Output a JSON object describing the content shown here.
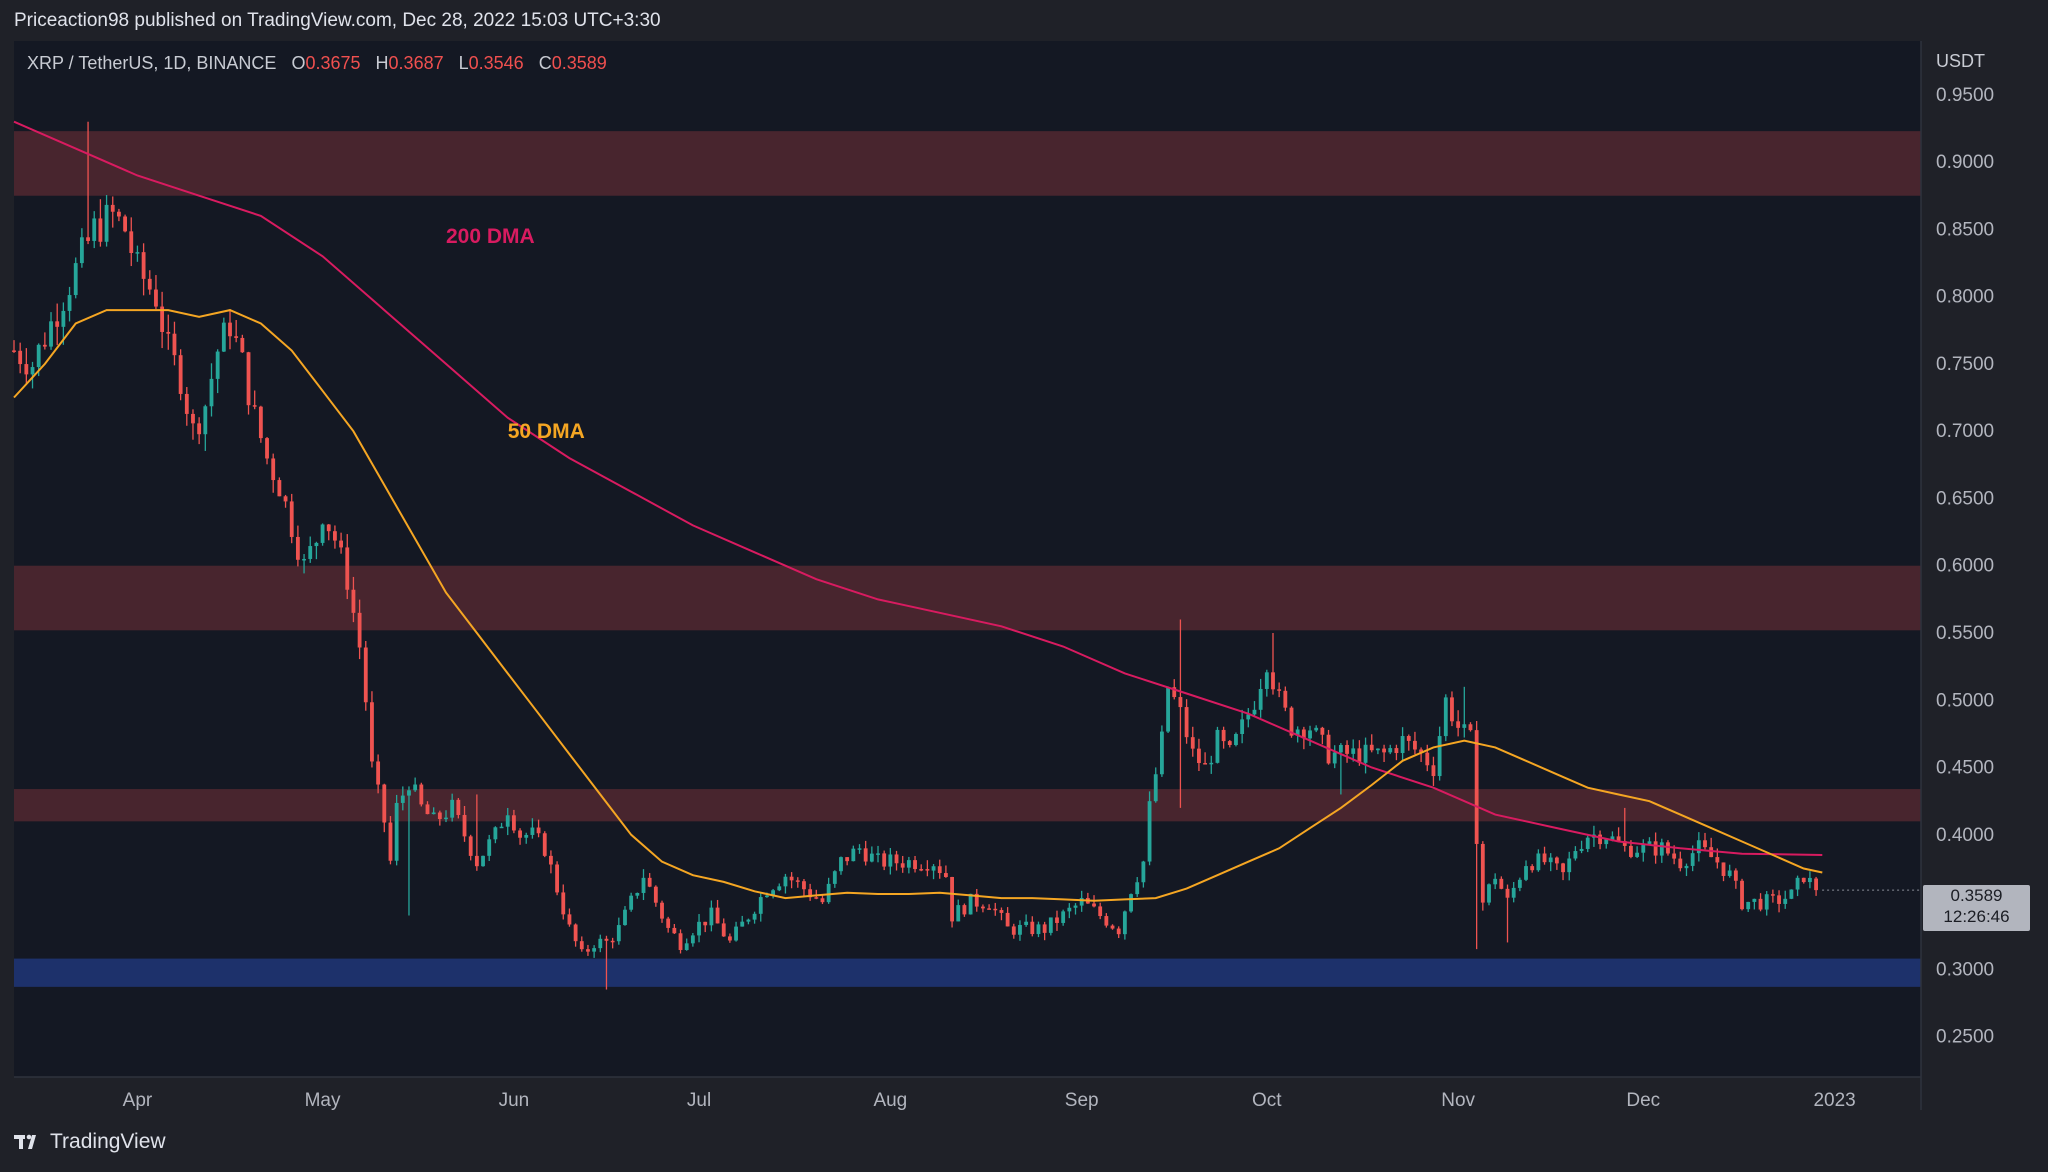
{
  "header": {
    "published": "Priceaction98 published on TradingView.com, Dec 28, 2022 15:03 UTC+3:30"
  },
  "legend": {
    "symbol": "XRP / TetherUS, 1D, BINANCE",
    "open_label": "O",
    "open": "0.3675",
    "high_label": "H",
    "high": "0.3687",
    "low_label": "L",
    "low": "0.3546",
    "close_label": "C",
    "close": "0.3589"
  },
  "price_tag": {
    "price": "0.3589",
    "countdown": "12:26:46"
  },
  "footer": {
    "brand": "TradingView"
  },
  "colors": {
    "up": "#26a69a",
    "down": "#ef5350",
    "ma200": "#d81b60",
    "ma50": "#f5a623",
    "zone": "#5a2a33",
    "support": "#1e3370",
    "bg": "#141823"
  },
  "chart_data": {
    "type": "candlestick",
    "currency_label": "USDT",
    "ylim": [
      0.22,
      0.99
    ],
    "y_ticks": [
      "0.9500",
      "0.9000",
      "0.8500",
      "0.8000",
      "0.7500",
      "0.7000",
      "0.6500",
      "0.6000",
      "0.5500",
      "0.5000",
      "0.4500",
      "0.4000",
      "0.3000",
      "0.2500"
    ],
    "x_ticks": [
      {
        "label": "Apr",
        "day": 10
      },
      {
        "label": "May",
        "day": 40
      },
      {
        "label": "Jun",
        "day": 71
      },
      {
        "label": "Jul",
        "day": 101
      },
      {
        "label": "Aug",
        "day": 132
      },
      {
        "label": "Sep",
        "day": 163
      },
      {
        "label": "Oct",
        "day": 193
      },
      {
        "label": "Nov",
        "day": 224
      },
      {
        "label": "Dec",
        "day": 254
      },
      {
        "label": "2023",
        "day": 285
      }
    ],
    "x_range_days": [
      -10,
      299
    ],
    "zones": [
      {
        "low": 0.875,
        "high": 0.923,
        "type": "resistance"
      },
      {
        "low": 0.552,
        "high": 0.6,
        "type": "resistance"
      },
      {
        "low": 0.41,
        "high": 0.434,
        "type": "resistance"
      },
      {
        "low": 0.287,
        "high": 0.308,
        "type": "support"
      }
    ],
    "anchors": [
      [
        -10,
        0.76
      ],
      [
        -7,
        0.75
      ],
      [
        -3,
        0.79
      ],
      [
        0,
        0.82
      ],
      [
        3,
        0.85
      ],
      [
        6,
        0.86
      ],
      [
        8,
        0.85
      ],
      [
        10,
        0.82
      ],
      [
        13,
        0.8
      ],
      [
        15,
        0.76
      ],
      [
        17,
        0.74
      ],
      [
        19,
        0.7
      ],
      [
        21,
        0.72
      ],
      [
        23,
        0.76
      ],
      [
        25,
        0.78
      ],
      [
        27,
        0.75
      ],
      [
        29,
        0.71
      ],
      [
        31,
        0.68
      ],
      [
        33,
        0.66
      ],
      [
        35,
        0.63
      ],
      [
        37,
        0.6
      ],
      [
        39,
        0.62
      ],
      [
        40,
        0.64
      ],
      [
        42,
        0.62
      ],
      [
        44,
        0.59
      ],
      [
        46,
        0.54
      ],
      [
        47,
        0.5
      ],
      [
        48,
        0.45
      ],
      [
        50,
        0.41
      ],
      [
        51,
        0.38
      ],
      [
        52,
        0.42
      ],
      [
        54,
        0.44
      ],
      [
        56,
        0.42
      ],
      [
        58,
        0.41
      ],
      [
        61,
        0.42
      ],
      [
        63,
        0.4
      ],
      [
        65,
        0.38
      ],
      [
        68,
        0.4
      ],
      [
        70,
        0.42
      ],
      [
        72,
        0.4
      ],
      [
        74,
        0.4
      ],
      [
        76,
        0.39
      ],
      [
        78,
        0.36
      ],
      [
        80,
        0.33
      ],
      [
        82,
        0.31
      ],
      [
        84,
        0.32
      ],
      [
        86,
        0.32
      ],
      [
        88,
        0.33
      ],
      [
        90,
        0.35
      ],
      [
        92,
        0.37
      ],
      [
        94,
        0.35
      ],
      [
        96,
        0.33
      ],
      [
        98,
        0.32
      ],
      [
        100,
        0.33
      ],
      [
        103,
        0.34
      ],
      [
        106,
        0.32
      ],
      [
        109,
        0.34
      ],
      [
        112,
        0.36
      ],
      [
        115,
        0.37
      ],
      [
        118,
        0.36
      ],
      [
        121,
        0.35
      ],
      [
        124,
        0.38
      ],
      [
        127,
        0.39
      ],
      [
        130,
        0.38
      ],
      [
        133,
        0.38
      ],
      [
        136,
        0.38
      ],
      [
        139,
        0.38
      ],
      [
        141,
        0.37
      ],
      [
        142,
        0.34
      ],
      [
        145,
        0.35
      ],
      [
        148,
        0.35
      ],
      [
        151,
        0.33
      ],
      [
        154,
        0.33
      ],
      [
        157,
        0.33
      ],
      [
        160,
        0.34
      ],
      [
        163,
        0.35
      ],
      [
        166,
        0.34
      ],
      [
        169,
        0.33
      ],
      [
        171,
        0.36
      ],
      [
        173,
        0.38
      ],
      [
        174,
        0.42
      ],
      [
        176,
        0.47
      ],
      [
        177,
        0.51
      ],
      [
        179,
        0.49
      ],
      [
        181,
        0.46
      ],
      [
        183,
        0.45
      ],
      [
        185,
        0.47
      ],
      [
        187,
        0.46
      ],
      [
        189,
        0.48
      ],
      [
        191,
        0.5
      ],
      [
        193,
        0.53
      ],
      [
        195,
        0.5
      ],
      [
        197,
        0.48
      ],
      [
        200,
        0.48
      ],
      [
        203,
        0.46
      ],
      [
        206,
        0.46
      ],
      [
        209,
        0.46
      ],
      [
        212,
        0.46
      ],
      [
        215,
        0.47
      ],
      [
        218,
        0.46
      ],
      [
        220,
        0.45
      ],
      [
        222,
        0.5
      ],
      [
        224,
        0.48
      ],
      [
        226,
        0.47
      ],
      [
        227,
        0.4
      ],
      [
        228,
        0.35
      ],
      [
        230,
        0.37
      ],
      [
        232,
        0.35
      ],
      [
        235,
        0.38
      ],
      [
        238,
        0.38
      ],
      [
        241,
        0.37
      ],
      [
        243,
        0.39
      ],
      [
        245,
        0.4
      ],
      [
        248,
        0.4
      ],
      [
        251,
        0.39
      ],
      [
        254,
        0.39
      ],
      [
        257,
        0.39
      ],
      [
        260,
        0.38
      ],
      [
        263,
        0.39
      ],
      [
        266,
        0.38
      ],
      [
        268,
        0.37
      ],
      [
        270,
        0.35
      ],
      [
        272,
        0.35
      ],
      [
        275,
        0.35
      ],
      [
        278,
        0.355
      ],
      [
        280,
        0.37
      ],
      [
        282,
        0.359
      ]
    ],
    "spikes": [
      [
        2,
        "high",
        0.93
      ],
      [
        54,
        "low",
        0.34
      ],
      [
        65,
        "high",
        0.43
      ],
      [
        86,
        "low",
        0.285
      ],
      [
        179,
        "high",
        0.56
      ],
      [
        179,
        "low",
        0.42
      ],
      [
        194,
        "high",
        0.55
      ],
      [
        205,
        "low",
        0.43
      ],
      [
        225,
        "high",
        0.51
      ],
      [
        227,
        "low",
        0.315
      ],
      [
        232,
        "low",
        0.32
      ],
      [
        251,
        "high",
        0.42
      ]
    ],
    "ma50": [
      [
        -10,
        0.725
      ],
      [
        -5,
        0.75
      ],
      [
        0,
        0.78
      ],
      [
        5,
        0.79
      ],
      [
        10,
        0.79
      ],
      [
        15,
        0.79
      ],
      [
        20,
        0.785
      ],
      [
        25,
        0.79
      ],
      [
        30,
        0.78
      ],
      [
        35,
        0.76
      ],
      [
        40,
        0.73
      ],
      [
        45,
        0.7
      ],
      [
        50,
        0.66
      ],
      [
        55,
        0.62
      ],
      [
        60,
        0.58
      ],
      [
        65,
        0.55
      ],
      [
        70,
        0.52
      ],
      [
        75,
        0.49
      ],
      [
        80,
        0.46
      ],
      [
        85,
        0.43
      ],
      [
        90,
        0.4
      ],
      [
        95,
        0.38
      ],
      [
        100,
        0.37
      ],
      [
        105,
        0.365
      ],
      [
        110,
        0.358
      ],
      [
        115,
        0.353
      ],
      [
        120,
        0.355
      ],
      [
        125,
        0.357
      ],
      [
        130,
        0.356
      ],
      [
        135,
        0.356
      ],
      [
        140,
        0.357
      ],
      [
        145,
        0.355
      ],
      [
        150,
        0.353
      ],
      [
        155,
        0.353
      ],
      [
        160,
        0.352
      ],
      [
        165,
        0.351
      ],
      [
        170,
        0.352
      ],
      [
        175,
        0.353
      ],
      [
        180,
        0.36
      ],
      [
        185,
        0.37
      ],
      [
        190,
        0.38
      ],
      [
        195,
        0.39
      ],
      [
        200,
        0.405
      ],
      [
        205,
        0.42
      ],
      [
        210,
        0.437
      ],
      [
        215,
        0.455
      ],
      [
        220,
        0.465
      ],
      [
        225,
        0.47
      ],
      [
        230,
        0.465
      ],
      [
        235,
        0.455
      ],
      [
        240,
        0.445
      ],
      [
        245,
        0.435
      ],
      [
        250,
        0.43
      ],
      [
        255,
        0.425
      ],
      [
        260,
        0.415
      ],
      [
        265,
        0.405
      ],
      [
        270,
        0.395
      ],
      [
        275,
        0.385
      ],
      [
        280,
        0.375
      ],
      [
        283,
        0.372
      ]
    ],
    "ma200": [
      [
        -10,
        0.93
      ],
      [
        0,
        0.91
      ],
      [
        10,
        0.89
      ],
      [
        20,
        0.875
      ],
      [
        30,
        0.86
      ],
      [
        40,
        0.83
      ],
      [
        50,
        0.79
      ],
      [
        60,
        0.75
      ],
      [
        70,
        0.71
      ],
      [
        80,
        0.68
      ],
      [
        90,
        0.655
      ],
      [
        100,
        0.63
      ],
      [
        110,
        0.61
      ],
      [
        120,
        0.59
      ],
      [
        130,
        0.575
      ],
      [
        140,
        0.565
      ],
      [
        150,
        0.555
      ],
      [
        160,
        0.54
      ],
      [
        170,
        0.52
      ],
      [
        180,
        0.505
      ],
      [
        190,
        0.49
      ],
      [
        200,
        0.47
      ],
      [
        210,
        0.45
      ],
      [
        220,
        0.435
      ],
      [
        230,
        0.415
      ],
      [
        240,
        0.405
      ],
      [
        250,
        0.395
      ],
      [
        260,
        0.39
      ],
      [
        270,
        0.386
      ],
      [
        283,
        0.385
      ]
    ],
    "ma_labels": [
      {
        "name": "200 DMA",
        "day": 60,
        "value": 0.84
      },
      {
        "name": "50 DMA",
        "day": 70,
        "value": 0.695
      }
    ]
  }
}
